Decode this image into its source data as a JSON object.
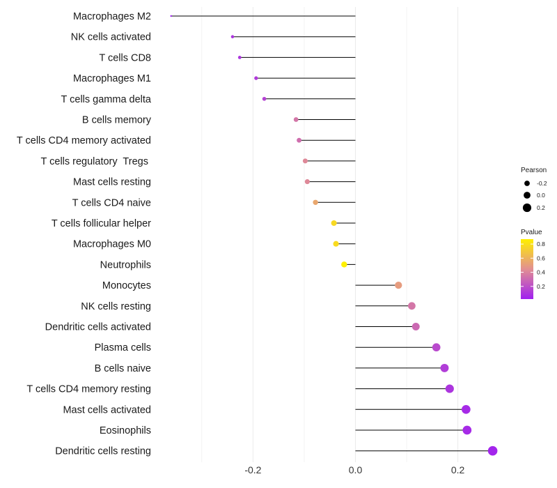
{
  "chart_data": {
    "type": "lollipop",
    "title": "",
    "xlabel": "",
    "ylabel": "",
    "xlim": [
      -0.365,
      0.29
    ],
    "x_ticks": [
      -0.2,
      0.0,
      0.2
    ],
    "x_tick_labels": [
      "-0.2",
      "0.0",
      "0.2"
    ],
    "grid": true,
    "categories": [
      "Macrophages M2",
      "NK cells activated",
      "T cells CD8",
      "Macrophages M1",
      "T cells gamma delta",
      "B cells memory",
      "T cells CD4 memory activated",
      "T cells regulatory  Tregs ",
      "Mast cells resting",
      "T cells CD4 naive",
      "T cells follicular helper",
      "Macrophages M0",
      "Neutrophils",
      "Monocytes",
      "NK cells resting",
      "Dendritic cells activated",
      "Plasma cells",
      "B cells naive",
      "T cells CD4 memory resting",
      "Mast cells activated",
      "Eosinophils",
      "Dendritic cells resting"
    ],
    "pearson": [
      -0.36,
      -0.24,
      -0.226,
      -0.194,
      -0.178,
      -0.116,
      -0.11,
      -0.098,
      -0.094,
      -0.078,
      -0.042,
      -0.038,
      -0.022,
      0.084,
      0.11,
      0.118,
      0.158,
      0.174,
      0.184,
      0.216,
      0.218,
      0.268
    ],
    "pvalue": [
      0.02,
      0.1,
      0.1,
      0.12,
      0.15,
      0.35,
      0.32,
      0.42,
      0.42,
      0.55,
      0.77,
      0.78,
      0.87,
      0.5,
      0.35,
      0.3,
      0.18,
      0.13,
      0.1,
      0.06,
      0.06,
      0.04
    ],
    "legend": {
      "size_title": "Pearson",
      "size_labels": [
        "-0.2",
        "0.0",
        "0.2"
      ],
      "color_title": "Pvalue",
      "color_labels": [
        "0.8",
        "0.6",
        "0.4",
        "0.2"
      ],
      "color_values": [
        0.8,
        0.6,
        0.4,
        0.2
      ],
      "color_range": [
        0.02,
        0.87
      ],
      "position": "right"
    },
    "colors": {
      "low": "#A020F0",
      "mid": "#E28F92",
      "high": "#FFF000",
      "segment": "#000000",
      "grid": "#EBEBEB"
    }
  }
}
